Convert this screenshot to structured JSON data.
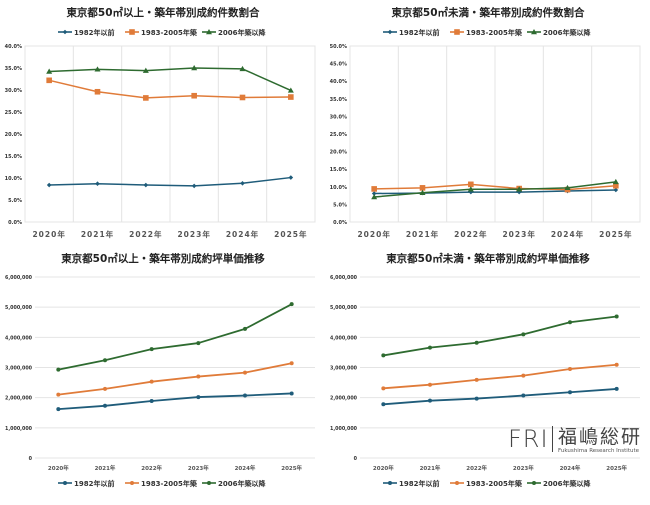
{
  "colors": {
    "s1": "#1f5c7a",
    "s2": "#e07b39",
    "s3": "#2e6b30",
    "grid": "#e4e4e4",
    "text": "#333333"
  },
  "logo": {
    "mark": "FRI",
    "name": "福嶋総研",
    "sub": "Fukushima Research Institute"
  },
  "chart_data": [
    {
      "type": "line",
      "title": "東京都50㎡以上・築年帯別成約件数割合",
      "categories": [
        "2020年",
        "2021年",
        "2022年",
        "2023年",
        "2024年",
        "2025年"
      ],
      "ylim": [
        0,
        40
      ],
      "ytick_step": 5,
      "yformat": "percent",
      "ytick_labels": [
        "0.0%",
        "5.0%",
        "10.0%",
        "15.0%",
        "20.0%",
        "25.0%",
        "30.0%",
        "35.0%",
        "40.0%"
      ],
      "grid": "vertical",
      "legend": "top",
      "markers": [
        "diamond",
        "square",
        "triangle"
      ],
      "series": [
        {
          "name": "1982年以前",
          "values": [
            8.4,
            8.7,
            8.4,
            8.2,
            8.8,
            10.1
          ]
        },
        {
          "name": "1983-2005年築",
          "values": [
            32.2,
            29.6,
            28.2,
            28.7,
            28.3,
            28.4
          ]
        },
        {
          "name": "2006年築以降",
          "values": [
            34.2,
            34.7,
            34.4,
            35.0,
            34.8,
            29.9
          ]
        }
      ]
    },
    {
      "type": "line",
      "title": "東京都50㎡未満・築年帯別成約件数割合",
      "categories": [
        "2020年",
        "2021年",
        "2022年",
        "2023年",
        "2024年",
        "2025年"
      ],
      "ylim": [
        0,
        50
      ],
      "ytick_step": 5,
      "yformat": "percent",
      "ytick_labels": [
        "0.0%",
        "5.0%",
        "10.0%",
        "15.0%",
        "20.0%",
        "25.0%",
        "30.0%",
        "35.0%",
        "40.0%",
        "45.0%",
        "50.0%"
      ],
      "grid": "vertical",
      "legend": "top",
      "markers": [
        "diamond",
        "square",
        "triangle"
      ],
      "series": [
        {
          "name": "1982年以前",
          "values": [
            8.1,
            8.2,
            8.5,
            8.5,
            8.8,
            9.1
          ]
        },
        {
          "name": "1983-2005年築",
          "values": [
            9.4,
            9.7,
            10.7,
            9.5,
            9.2,
            10.3
          ]
        },
        {
          "name": "2006年築以降",
          "values": [
            7.1,
            8.3,
            9.3,
            9.3,
            9.7,
            11.4
          ]
        }
      ]
    },
    {
      "type": "line",
      "title": "東京都50㎡以上・築年帯別成約坪単価推移",
      "categories": [
        "2020年",
        "2021年",
        "2022年",
        "2023年",
        "2024年",
        "2025年"
      ],
      "ylim": [
        0,
        6000000
      ],
      "ytick_step": 1000000,
      "ytick_labels": [
        "0",
        "1,000,000",
        "2,000,000",
        "3,000,000",
        "4,000,000",
        "5,000,000",
        "6,000,000"
      ],
      "grid": "horizontal",
      "legend": "bottom",
      "markers": [
        "circle",
        "circle",
        "circle"
      ],
      "series": [
        {
          "name": "1982年以前",
          "values": [
            1620000,
            1730000,
            1890000,
            2020000,
            2070000,
            2140000
          ]
        },
        {
          "name": "1983-2005年築",
          "values": [
            2100000,
            2290000,
            2530000,
            2700000,
            2830000,
            3140000
          ]
        },
        {
          "name": "2006年築以降",
          "values": [
            2930000,
            3240000,
            3610000,
            3810000,
            4280000,
            5100000
          ]
        }
      ]
    },
    {
      "type": "line",
      "title": "東京都50㎡未満・築年帯別成約坪単価推移",
      "categories": [
        "2020年",
        "2021年",
        "2022年",
        "2023年",
        "2024年",
        "2025年"
      ],
      "ylim": [
        0,
        6000000
      ],
      "ytick_step": 1000000,
      "ytick_labels": [
        "0",
        "1,000,000",
        "2,000,000",
        "3,000,000",
        "4,000,000",
        "5,000,000",
        "6,000,000"
      ],
      "grid": "horizontal",
      "legend": "bottom",
      "markers": [
        "circle",
        "circle",
        "circle"
      ],
      "series": [
        {
          "name": "1982年以前",
          "values": [
            1780000,
            1900000,
            1970000,
            2070000,
            2180000,
            2290000
          ]
        },
        {
          "name": "1983-2005年築",
          "values": [
            2310000,
            2430000,
            2590000,
            2730000,
            2950000,
            3090000
          ]
        },
        {
          "name": "2006年築以降",
          "values": [
            3400000,
            3660000,
            3820000,
            4100000,
            4500000,
            4690000
          ]
        }
      ]
    }
  ]
}
